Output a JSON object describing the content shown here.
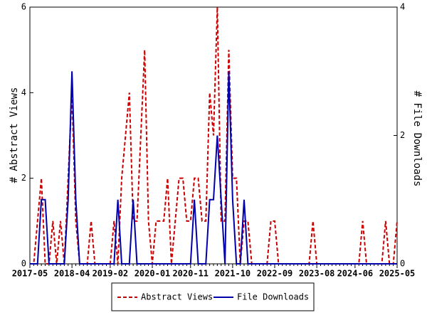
{
  "chart_data": {
    "type": "line",
    "categories": [
      "2017-05",
      null,
      null,
      null,
      null,
      null,
      null,
      null,
      null,
      null,
      null,
      "2018-04",
      null,
      null,
      null,
      null,
      null,
      null,
      null,
      null,
      null,
      "2019-02",
      null,
      null,
      null,
      null,
      null,
      null,
      null,
      null,
      null,
      null,
      "2020-01",
      null,
      null,
      null,
      null,
      null,
      null,
      null,
      null,
      null,
      "2020-11",
      null,
      null,
      null,
      null,
      null,
      null,
      null,
      null,
      null,
      null,
      "2021-10",
      null,
      null,
      null,
      null,
      null,
      null,
      null,
      null,
      null,
      null,
      "2022-09",
      null,
      null,
      null,
      null,
      null,
      null,
      null,
      null,
      null,
      null,
      "2023-08",
      null,
      null,
      null,
      null,
      null,
      null,
      null,
      null,
      null,
      "2024-06",
      null,
      null,
      null,
      null,
      null,
      null,
      null,
      null,
      null,
      null,
      "2025-05"
    ],
    "ylabel": "# Abstract Views",
    "y2label": "# File Downloads",
    "ylim": [
      0,
      6
    ],
    "yticks": [
      0,
      2,
      4,
      6
    ],
    "y2lim": [
      0,
      4
    ],
    "y2ticks": [
      0,
      2,
      4
    ],
    "legend": "bottom",
    "series": [
      {
        "name": "Abstract Views",
        "color": "#cc0000",
        "dash": true,
        "axis": "y",
        "values": [
          0,
          0,
          1,
          2,
          0,
          0,
          1,
          0,
          1,
          0,
          2,
          4,
          1,
          0,
          0,
          0,
          1,
          0,
          0,
          0,
          0,
          0,
          1,
          0,
          2,
          3,
          4,
          1,
          1,
          3,
          5,
          1,
          0,
          1,
          1,
          1,
          2,
          0,
          1,
          2,
          2,
          1,
          1,
          2,
          2,
          1,
          1,
          4,
          3,
          6,
          1,
          1,
          5,
          2,
          2,
          0,
          1,
          1,
          0,
          0,
          0,
          0,
          0,
          1,
          1,
          0,
          0,
          0,
          0,
          0,
          0,
          0,
          0,
          0,
          1,
          0,
          0,
          0,
          0,
          0,
          0,
          0,
          0,
          0,
          0,
          0,
          0,
          1,
          0,
          0,
          0,
          0,
          0,
          1,
          0,
          0,
          1
        ]
      },
      {
        "name": "File Downloads",
        "color": "#0000aa",
        "dash": false,
        "axis": "y2",
        "values": [
          0,
          0,
          0,
          1,
          1,
          0,
          0,
          0,
          0,
          0,
          1,
          3,
          1,
          0,
          0,
          0,
          0,
          0,
          0,
          0,
          0,
          0,
          0,
          1,
          0,
          0,
          0,
          1,
          0,
          0,
          0,
          0,
          0,
          0,
          0,
          0,
          0,
          0,
          0,
          0,
          0,
          0,
          0,
          1,
          0,
          0,
          0,
          1,
          1,
          2,
          1,
          0,
          3,
          1,
          0,
          0,
          1,
          0,
          0,
          0,
          0,
          0,
          0,
          0,
          0,
          0,
          0,
          0,
          0,
          0,
          0,
          0,
          0,
          0,
          0,
          0,
          0,
          0,
          0,
          0,
          0,
          0,
          0,
          0,
          0,
          0,
          0,
          0,
          0,
          0,
          0,
          0,
          0,
          0,
          0,
          0,
          0
        ]
      }
    ]
  }
}
